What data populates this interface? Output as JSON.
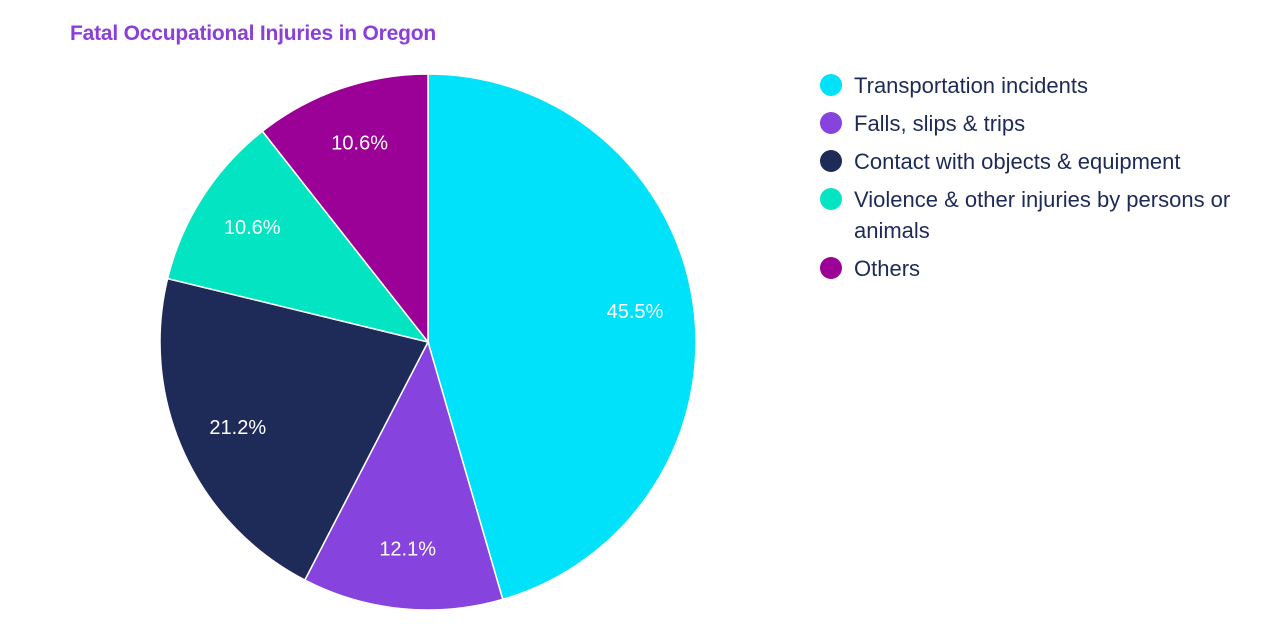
{
  "chart_data": {
    "type": "pie",
    "title": "Fatal Occupational Injuries in Oregon",
    "title_color": "#8a3fd9",
    "label_color": "#ffffff",
    "legend_position": "right",
    "legend_text_color": "#1d2a57",
    "slices": [
      {
        "name": "Transportation incidents",
        "value": 45.5,
        "label": "45.5%",
        "color": "#00e1fa"
      },
      {
        "name": "Falls, slips & trips",
        "value": 12.1,
        "label": "12.1%",
        "color": "#8743dd"
      },
      {
        "name": "Contact with objects & equipment",
        "value": 21.2,
        "label": "21.2%",
        "color": "#1e2a57"
      },
      {
        "name": "Violence & other injuries by persons or animals",
        "value": 10.6,
        "label": "10.6%",
        "color": "#03e4c2"
      },
      {
        "name": "Others",
        "value": 10.6,
        "label": "10.6%",
        "color": "#9b0097"
      }
    ]
  }
}
